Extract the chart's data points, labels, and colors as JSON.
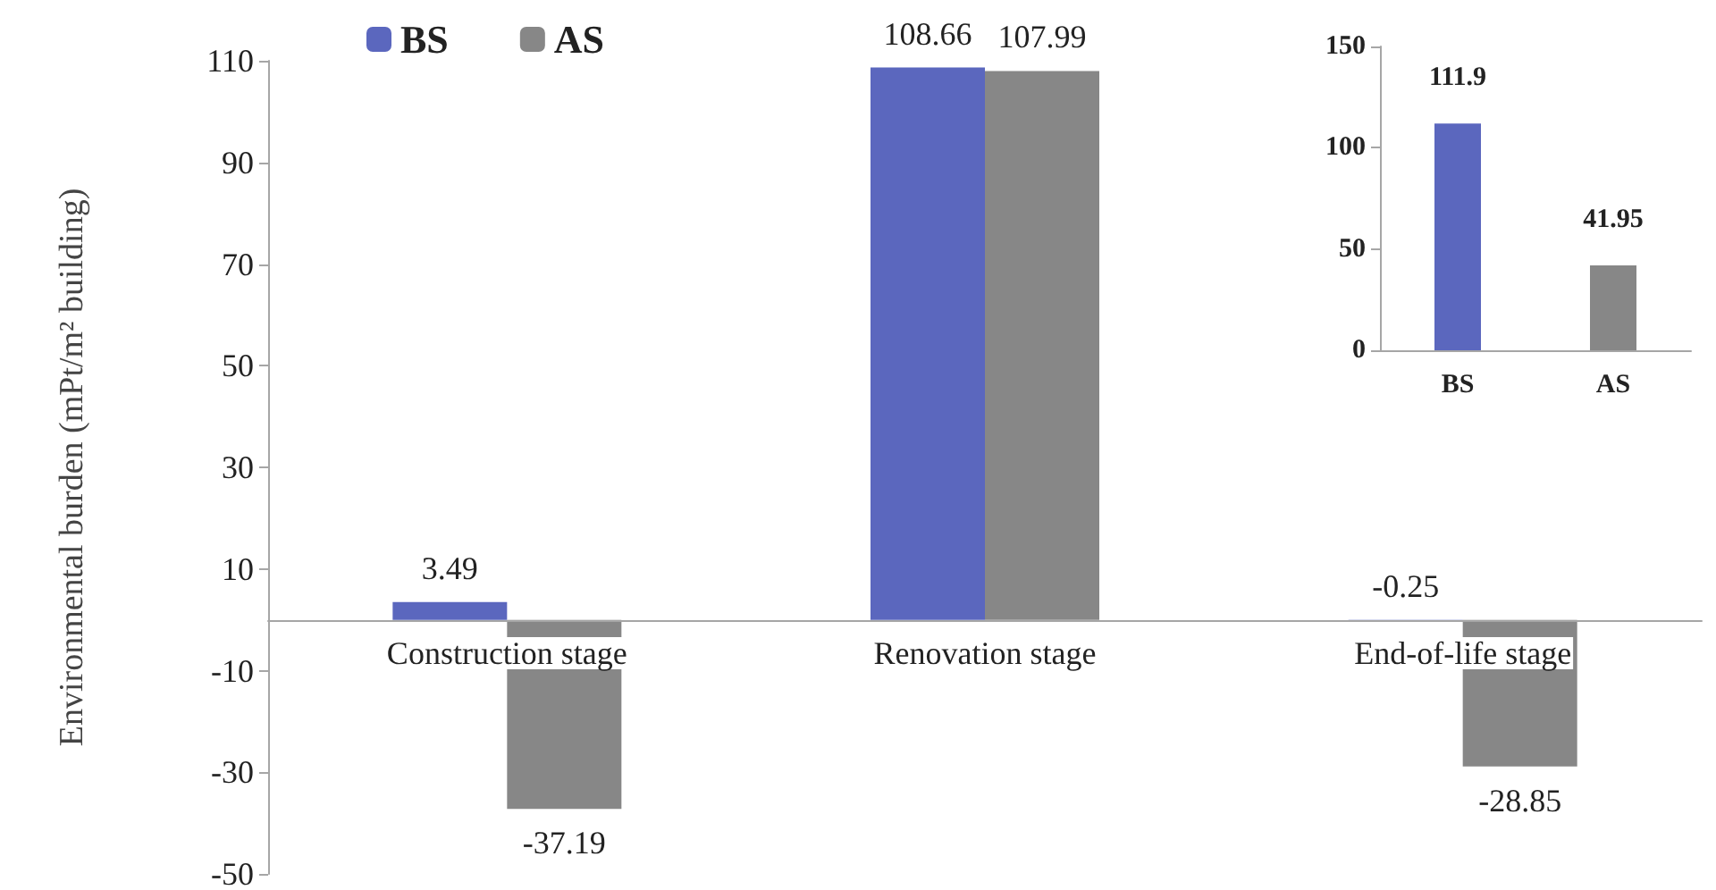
{
  "chart_data": [
    {
      "type": "bar",
      "ylabel": "Environmental burden (mPt/m² building)",
      "categories": [
        "Construction stage",
        "Renovation stage",
        "End-of-life stage"
      ],
      "series": [
        {
          "name": "BS",
          "color": "#5b67be",
          "values": [
            3.49,
            108.66,
            -0.25
          ]
        },
        {
          "name": "AS",
          "color": "#878787",
          "values": [
            -37.19,
            107.99,
            -28.85
          ]
        }
      ],
      "ylim": [
        -50,
        110
      ],
      "yticks": [
        -50,
        -30,
        -10,
        10,
        30,
        50,
        70,
        90,
        110
      ],
      "data_labels": true,
      "legend": "top left",
      "grid": false
    },
    {
      "type": "bar",
      "categories": [
        "BS",
        "AS"
      ],
      "values": [
        111.9,
        41.95
      ],
      "colors": [
        "#5b67be",
        "#878787"
      ],
      "ylim": [
        0,
        150
      ],
      "yticks": [
        0,
        50,
        100,
        150
      ],
      "data_labels": true,
      "grid": false
    }
  ]
}
